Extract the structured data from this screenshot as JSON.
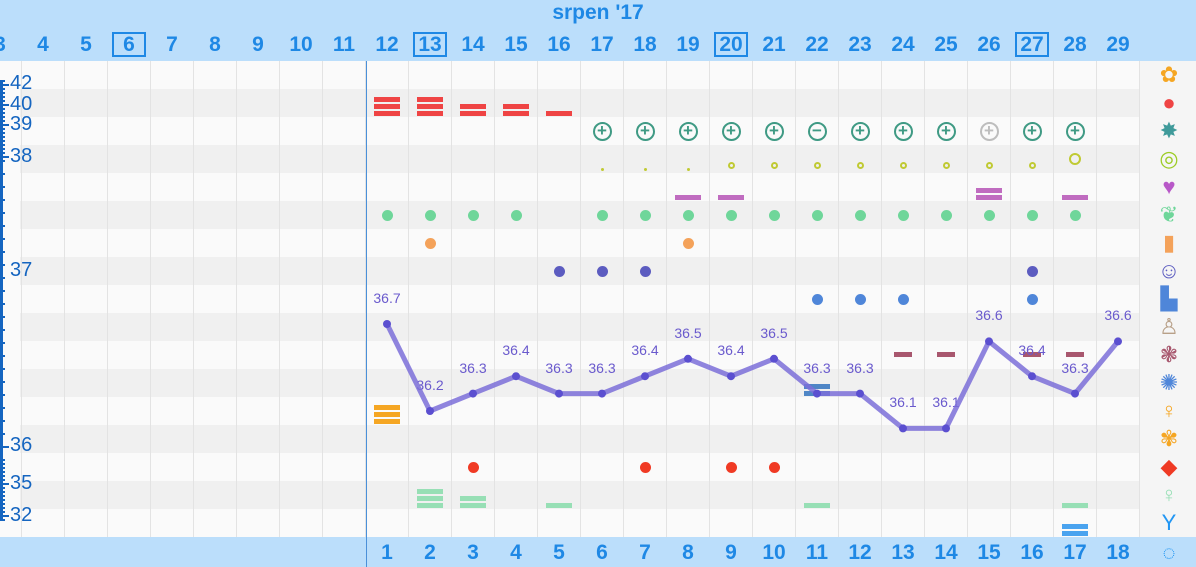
{
  "header": {
    "month": "srpen '17",
    "days": [
      {
        "label": "3",
        "boxed": false
      },
      {
        "label": "4",
        "boxed": false
      },
      {
        "label": "5",
        "boxed": false
      },
      {
        "label": "6",
        "boxed": true
      },
      {
        "label": "7",
        "boxed": false
      },
      {
        "label": "8",
        "boxed": false
      },
      {
        "label": "9",
        "boxed": false
      },
      {
        "label": "10",
        "boxed": false
      },
      {
        "label": "11",
        "boxed": false
      },
      {
        "label": "12",
        "boxed": false
      },
      {
        "label": "13",
        "boxed": true
      },
      {
        "label": "14",
        "boxed": false
      },
      {
        "label": "15",
        "boxed": false
      },
      {
        "label": "16",
        "boxed": false
      },
      {
        "label": "17",
        "boxed": false
      },
      {
        "label": "18",
        "boxed": false
      },
      {
        "label": "19",
        "boxed": false
      },
      {
        "label": "20",
        "boxed": true
      },
      {
        "label": "21",
        "boxed": false
      },
      {
        "label": "22",
        "boxed": false
      },
      {
        "label": "23",
        "boxed": false
      },
      {
        "label": "24",
        "boxed": false
      },
      {
        "label": "25",
        "boxed": false
      },
      {
        "label": "26",
        "boxed": false
      },
      {
        "label": "27",
        "boxed": true
      },
      {
        "label": "28",
        "boxed": false
      },
      {
        "label": "29",
        "boxed": false
      }
    ]
  },
  "cycle_days": [
    "1",
    "2",
    "3",
    "4",
    "5",
    "6",
    "7",
    "8",
    "9",
    "10",
    "11",
    "12",
    "13",
    "14",
    "15",
    "16",
    "17",
    "18"
  ],
  "y_axis": {
    "labels": [
      "42",
      "40",
      "39",
      "38",
      "37",
      "36",
      "35",
      "32"
    ]
  },
  "chart_data": {
    "type": "line",
    "x": [
      12,
      13,
      14,
      15,
      16,
      17,
      18,
      19,
      20,
      21,
      22,
      23,
      24,
      25,
      26,
      27,
      28,
      29
    ],
    "temperatures": [
      36.7,
      36.2,
      36.3,
      36.4,
      36.3,
      36.3,
      36.4,
      36.5,
      36.4,
      36.5,
      36.3,
      36.3,
      36.1,
      36.1,
      36.6,
      36.4,
      36.3,
      36.6
    ],
    "labels": [
      "36.7",
      "36.2",
      "36.3",
      "36.4",
      "36.3",
      "36.3",
      "36.4",
      "36.5",
      "36.4",
      "36.5",
      "36.3",
      "36.3",
      "36.1",
      "36.1",
      "36.6",
      "36.4",
      "36.3",
      "36.6"
    ],
    "line_color": "#7b6fd8",
    "point_color": "#5b4fd0"
  },
  "events": {
    "menstruation_bars": {
      "color": "#ef4444",
      "days": {
        "12": 3,
        "13": 3,
        "14": 2,
        "15": 2,
        "16": 1
      }
    },
    "tests": {
      "color": "#3f9a84",
      "days": {
        "17": "+",
        "18": "+",
        "19": "+",
        "20": "+",
        "21": "+",
        "22": "-",
        "23": "+",
        "24": "+",
        "25": "+",
        "26": "+?",
        "27": "+",
        "28": "+"
      }
    },
    "cervix": {
      "color": "#c0ca33",
      "small_dot_days": [
        17,
        18,
        19
      ],
      "ring_days": [
        20,
        21,
        22,
        23,
        24,
        25,
        26,
        27
      ],
      "large_ring_days": [
        28
      ]
    },
    "love_bars": {
      "color": "#c06cc0",
      "days": {
        "19": 1,
        "20": 1,
        "26": 2,
        "28": 1
      }
    },
    "herb_dots": {
      "color": "#6fd69a",
      "days": [
        12,
        13,
        14,
        15,
        17,
        18,
        19,
        20,
        21,
        22,
        23,
        24,
        25,
        26,
        27,
        28
      ]
    },
    "pill_dots": {
      "color": "#f4a25a",
      "days": [
        13,
        19
      ]
    },
    "mood_dots": {
      "color": "#5c5cc0",
      "days": [
        16,
        17,
        18,
        27
      ]
    },
    "note_dots": {
      "color": "#4f86d9",
      "days": [
        22,
        23,
        24,
        27
      ]
    },
    "dash_marks": {
      "color": "#a8576e",
      "days": [
        24,
        25,
        27,
        28
      ]
    },
    "orange_bars": {
      "color": "#f5a623",
      "days": {
        "12": 3
      }
    },
    "steel_bars": {
      "color": "#4f86c6",
      "days": {
        "22": 2
      }
    },
    "red_dots": {
      "color": "#f03a24",
      "days": [
        14,
        18,
        20,
        21
      ]
    },
    "green_bars": {
      "color": "#97dfb5",
      "days": {
        "13": 3,
        "14": 2,
        "16": 1,
        "22": 1,
        "28": 1
      }
    },
    "blue_bars": {
      "color": "#4aa3ef",
      "days": {
        "28": 2
      }
    }
  },
  "side_icons": [
    {
      "name": "flower-icon",
      "glyph": "✿",
      "color": "#f5a623"
    },
    {
      "name": "blood-drop-icon",
      "glyph": "●",
      "color": "#ef4444"
    },
    {
      "name": "splash-icon",
      "glyph": "✸",
      "color": "#3f9a9a"
    },
    {
      "name": "rings-icon",
      "glyph": "◎",
      "color": "#9ccc25"
    },
    {
      "name": "heart-icon",
      "glyph": "♥",
      "color": "#b858c8"
    },
    {
      "name": "leaf-icon",
      "glyph": "❦",
      "color": "#6fd69a"
    },
    {
      "name": "pill-bottle-icon",
      "glyph": "▮",
      "color": "#f4a25a"
    },
    {
      "name": "smiley-icon",
      "glyph": "☺",
      "color": "#5c5cc0"
    },
    {
      "name": "document-icon",
      "glyph": "▙",
      "color": "#4f86d9"
    },
    {
      "name": "pregnancy-check-icon",
      "glyph": "♙",
      "color": "#b8a088"
    },
    {
      "name": "flower-check-icon",
      "glyph": "❃",
      "color": "#a8576e"
    },
    {
      "name": "sparkle-icon",
      "glyph": "✺",
      "color": "#4f86d9"
    },
    {
      "name": "woman-orange-icon",
      "glyph": "♀",
      "color": "#f5a623"
    },
    {
      "name": "flower-alert-icon",
      "glyph": "✾",
      "color": "#f5a623"
    },
    {
      "name": "diamond-icon",
      "glyph": "◆",
      "color": "#ef3a24"
    },
    {
      "name": "woman-green-icon",
      "glyph": "♀",
      "color": "#97dfb5"
    },
    {
      "name": "cocktail-icon",
      "glyph": "Y",
      "color": "#2196f3"
    },
    {
      "name": "cycle-icon",
      "glyph": "◌",
      "color": "#2196f3"
    }
  ]
}
